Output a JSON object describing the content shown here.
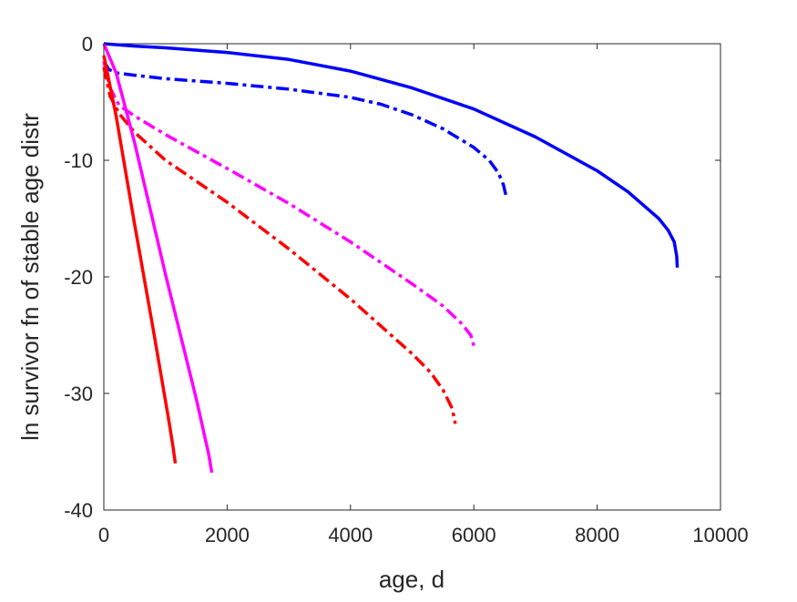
{
  "chart_data": {
    "type": "line",
    "title": "",
    "xlabel": "age, d",
    "ylabel": "ln survivor fn of stable age distr",
    "xlim": [
      0,
      10000
    ],
    "ylim": [
      -40,
      0
    ],
    "xticks": [
      0,
      2000,
      4000,
      6000,
      8000,
      10000
    ],
    "yticks": [
      0,
      -10,
      -20,
      -30,
      -40
    ],
    "xtick_labels": [
      "0",
      "2000",
      "4000",
      "6000",
      "8000",
      "10000"
    ],
    "ytick_labels": [
      "0",
      "-10",
      "-20",
      "-30",
      "-40"
    ],
    "grid": false,
    "legend": "none",
    "series": [
      {
        "color": "#0000ff",
        "style": "solid",
        "points": [
          [
            0,
            0
          ],
          [
            500,
            -0.2
          ],
          [
            1000,
            -0.35
          ],
          [
            2000,
            -0.75
          ],
          [
            3000,
            -1.35
          ],
          [
            4000,
            -2.35
          ],
          [
            5000,
            -3.8
          ],
          [
            6000,
            -5.6
          ],
          [
            7000,
            -8.0
          ],
          [
            8000,
            -10.9
          ],
          [
            8500,
            -12.7
          ],
          [
            9000,
            -15.0
          ],
          [
            9150,
            -16.0
          ],
          [
            9250,
            -17.0
          ],
          [
            9290,
            -18.2
          ],
          [
            9300,
            -19.2
          ]
        ]
      },
      {
        "color": "#0000ff",
        "style": "dashdot",
        "points": [
          [
            0,
            -1.5
          ],
          [
            80,
            -2.2
          ],
          [
            200,
            -2.5
          ],
          [
            500,
            -2.7
          ],
          [
            1000,
            -3.0
          ],
          [
            2000,
            -3.4
          ],
          [
            3000,
            -3.9
          ],
          [
            4000,
            -4.6
          ],
          [
            4500,
            -5.2
          ],
          [
            5000,
            -6.1
          ],
          [
            5500,
            -7.3
          ],
          [
            6000,
            -8.9
          ],
          [
            6250,
            -10.0
          ],
          [
            6400,
            -11.1
          ],
          [
            6480,
            -12.1
          ],
          [
            6520,
            -13.0
          ]
        ]
      },
      {
        "color": "#ff00ff",
        "style": "dashdot",
        "points": [
          [
            0,
            -1.5
          ],
          [
            100,
            -3.8
          ],
          [
            250,
            -5.3
          ],
          [
            500,
            -6.2
          ],
          [
            1000,
            -7.8
          ],
          [
            2000,
            -10.7
          ],
          [
            3000,
            -13.7
          ],
          [
            4000,
            -17.0
          ],
          [
            5000,
            -20.6
          ],
          [
            5500,
            -22.5
          ],
          [
            5800,
            -24.0
          ],
          [
            5950,
            -25.0
          ],
          [
            6000,
            -25.9
          ]
        ]
      },
      {
        "color": "#ff0000",
        "style": "dashdot",
        "points": [
          [
            0,
            -2.0
          ],
          [
            100,
            -4.5
          ],
          [
            250,
            -6.0
          ],
          [
            500,
            -7.6
          ],
          [
            1000,
            -10.0
          ],
          [
            2000,
            -13.6
          ],
          [
            3000,
            -17.6
          ],
          [
            4000,
            -21.9
          ],
          [
            5000,
            -26.6
          ],
          [
            5300,
            -28.2
          ],
          [
            5500,
            -29.7
          ],
          [
            5650,
            -31.3
          ],
          [
            5700,
            -32.6
          ]
        ]
      },
      {
        "color": "#ff00ff",
        "style": "solid",
        "points": [
          [
            0,
            0
          ],
          [
            200,
            -2.5
          ],
          [
            500,
            -8.5
          ],
          [
            1000,
            -19.8
          ],
          [
            1500,
            -30.5
          ],
          [
            1700,
            -35.2
          ],
          [
            1750,
            -36.8
          ]
        ]
      },
      {
        "color": "#ff0000",
        "style": "solid",
        "points": [
          [
            0,
            -1.0
          ],
          [
            200,
            -6.2
          ],
          [
            500,
            -15.5
          ],
          [
            800,
            -24.5
          ],
          [
            1050,
            -32.2
          ],
          [
            1120,
            -34.5
          ],
          [
            1160,
            -36.0
          ]
        ]
      }
    ]
  }
}
